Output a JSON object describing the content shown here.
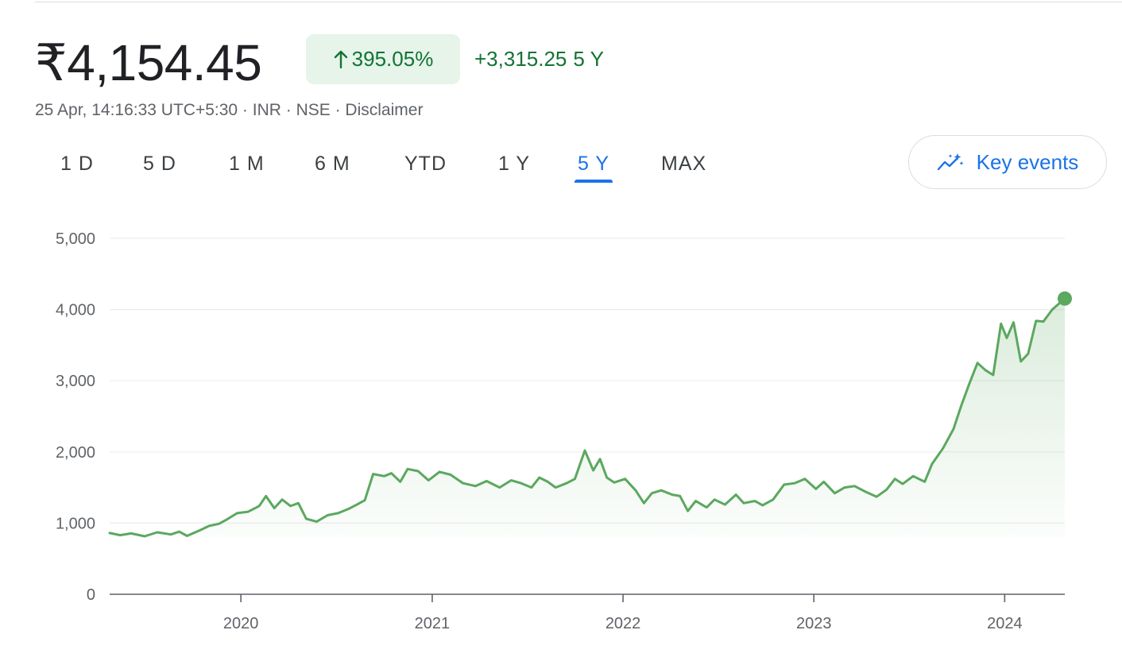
{
  "header": {
    "price": "₹4,154.45",
    "percent_change": "395.05%",
    "abs_change": "+3,315.25",
    "period": "5 Y",
    "meta": "25 Apr, 14:16:33 UTC+5:30 · INR · NSE · Disclaimer",
    "arrow_icon": "arrow-up-icon"
  },
  "tabs": [
    {
      "label": "1 D"
    },
    {
      "label": "5 D"
    },
    {
      "label": "1 M"
    },
    {
      "label": "6 M"
    },
    {
      "label": "YTD"
    },
    {
      "label": "1 Y"
    },
    {
      "label": "5 Y",
      "active": true
    },
    {
      "label": "MAX"
    }
  ],
  "key_events": {
    "label": "Key events",
    "icon": "sparkle-trend-icon"
  },
  "colors": {
    "line": "#5ba85f",
    "fill": "#e8f3ea",
    "positive_text": "#137333",
    "positive_bg": "#e6f4ea",
    "active_tab": "#1a73e8"
  },
  "chart_data": {
    "type": "area",
    "title": "",
    "xlabel": "",
    "ylabel": "",
    "ylim": [
      0,
      5000
    ],
    "xlim": [
      "2019-04-25",
      "2024-04-25"
    ],
    "y_ticks": [
      {
        "value": 0,
        "label": "0"
      },
      {
        "value": 1000,
        "label": "1,000"
      },
      {
        "value": 2000,
        "label": "2,000"
      },
      {
        "value": 3000,
        "label": "3,000"
      },
      {
        "value": 4000,
        "label": "4,000"
      },
      {
        "value": 5000,
        "label": "5,000"
      }
    ],
    "x_ticks": [
      {
        "date": "2020-01-01",
        "label": "2020"
      },
      {
        "date": "2021-01-01",
        "label": "2021"
      },
      {
        "date": "2022-01-01",
        "label": "2022"
      },
      {
        "date": "2023-01-01",
        "label": "2023"
      },
      {
        "date": "2024-01-01",
        "label": "2024"
      }
    ],
    "grid": true,
    "series": [
      {
        "points": [
          [
            "2019-04-25",
            860
          ],
          [
            "2019-05-15",
            830
          ],
          [
            "2019-06-05",
            855
          ],
          [
            "2019-07-01",
            815
          ],
          [
            "2019-07-25",
            870
          ],
          [
            "2019-08-20",
            840
          ],
          [
            "2019-09-05",
            880
          ],
          [
            "2019-09-20",
            820
          ],
          [
            "2019-10-15",
            900
          ],
          [
            "2019-11-01",
            960
          ],
          [
            "2019-11-20",
            990
          ],
          [
            "2019-12-05",
            1050
          ],
          [
            "2019-12-25",
            1140
          ],
          [
            "2020-01-15",
            1160
          ],
          [
            "2020-02-05",
            1240
          ],
          [
            "2020-02-18",
            1380
          ],
          [
            "2020-03-05",
            1210
          ],
          [
            "2020-03-20",
            1330
          ],
          [
            "2020-04-05",
            1240
          ],
          [
            "2020-04-20",
            1280
          ],
          [
            "2020-05-05",
            1060
          ],
          [
            "2020-05-25",
            1020
          ],
          [
            "2020-06-15",
            1110
          ],
          [
            "2020-07-05",
            1140
          ],
          [
            "2020-07-25",
            1200
          ],
          [
            "2020-08-10",
            1260
          ],
          [
            "2020-08-25",
            1320
          ],
          [
            "2020-09-10",
            1690
          ],
          [
            "2020-10-01",
            1660
          ],
          [
            "2020-10-15",
            1700
          ],
          [
            "2020-11-01",
            1580
          ],
          [
            "2020-11-15",
            1760
          ],
          [
            "2020-12-05",
            1730
          ],
          [
            "2020-12-25",
            1600
          ],
          [
            "2021-01-15",
            1720
          ],
          [
            "2021-02-05",
            1680
          ],
          [
            "2021-03-01",
            1560
          ],
          [
            "2021-03-25",
            1520
          ],
          [
            "2021-04-15",
            1590
          ],
          [
            "2021-05-10",
            1500
          ],
          [
            "2021-06-01",
            1600
          ],
          [
            "2021-06-20",
            1560
          ],
          [
            "2021-07-10",
            1500
          ],
          [
            "2021-07-25",
            1640
          ],
          [
            "2021-08-10",
            1580
          ],
          [
            "2021-08-25",
            1500
          ],
          [
            "2021-09-15",
            1560
          ],
          [
            "2021-10-01",
            1620
          ],
          [
            "2021-10-20",
            2020
          ],
          [
            "2021-11-05",
            1740
          ],
          [
            "2021-11-18",
            1900
          ],
          [
            "2021-12-01",
            1640
          ],
          [
            "2021-12-15",
            1570
          ],
          [
            "2022-01-05",
            1620
          ],
          [
            "2022-01-25",
            1460
          ],
          [
            "2022-02-10",
            1280
          ],
          [
            "2022-02-25",
            1420
          ],
          [
            "2022-03-15",
            1460
          ],
          [
            "2022-04-05",
            1400
          ],
          [
            "2022-04-20",
            1380
          ],
          [
            "2022-05-05",
            1170
          ],
          [
            "2022-05-20",
            1310
          ],
          [
            "2022-06-10",
            1220
          ],
          [
            "2022-06-25",
            1330
          ],
          [
            "2022-07-15",
            1260
          ],
          [
            "2022-08-05",
            1400
          ],
          [
            "2022-08-20",
            1280
          ],
          [
            "2022-09-10",
            1310
          ],
          [
            "2022-09-25",
            1250
          ],
          [
            "2022-10-15",
            1330
          ],
          [
            "2022-11-05",
            1540
          ],
          [
            "2022-11-25",
            1560
          ],
          [
            "2022-12-15",
            1620
          ],
          [
            "2023-01-05",
            1480
          ],
          [
            "2023-01-20",
            1580
          ],
          [
            "2023-02-10",
            1420
          ],
          [
            "2023-03-01",
            1500
          ],
          [
            "2023-03-20",
            1520
          ],
          [
            "2023-04-10",
            1440
          ],
          [
            "2023-05-01",
            1370
          ],
          [
            "2023-05-20",
            1470
          ],
          [
            "2023-06-05",
            1620
          ],
          [
            "2023-06-20",
            1550
          ],
          [
            "2023-07-10",
            1660
          ],
          [
            "2023-08-01",
            1580
          ],
          [
            "2023-08-15",
            1830
          ],
          [
            "2023-09-05",
            2050
          ],
          [
            "2023-09-25",
            2320
          ],
          [
            "2023-10-10",
            2650
          ],
          [
            "2023-10-25",
            2950
          ],
          [
            "2023-11-10",
            3250
          ],
          [
            "2023-11-25",
            3150
          ],
          [
            "2023-12-10",
            3080
          ],
          [
            "2023-12-25",
            3800
          ],
          [
            "2024-01-05",
            3600
          ],
          [
            "2024-01-18",
            3820
          ],
          [
            "2024-02-01",
            3270
          ],
          [
            "2024-02-15",
            3380
          ],
          [
            "2024-03-01",
            3840
          ],
          [
            "2024-03-15",
            3830
          ],
          [
            "2024-04-01",
            4000
          ],
          [
            "2024-04-25",
            4154.45
          ]
        ]
      }
    ]
  }
}
